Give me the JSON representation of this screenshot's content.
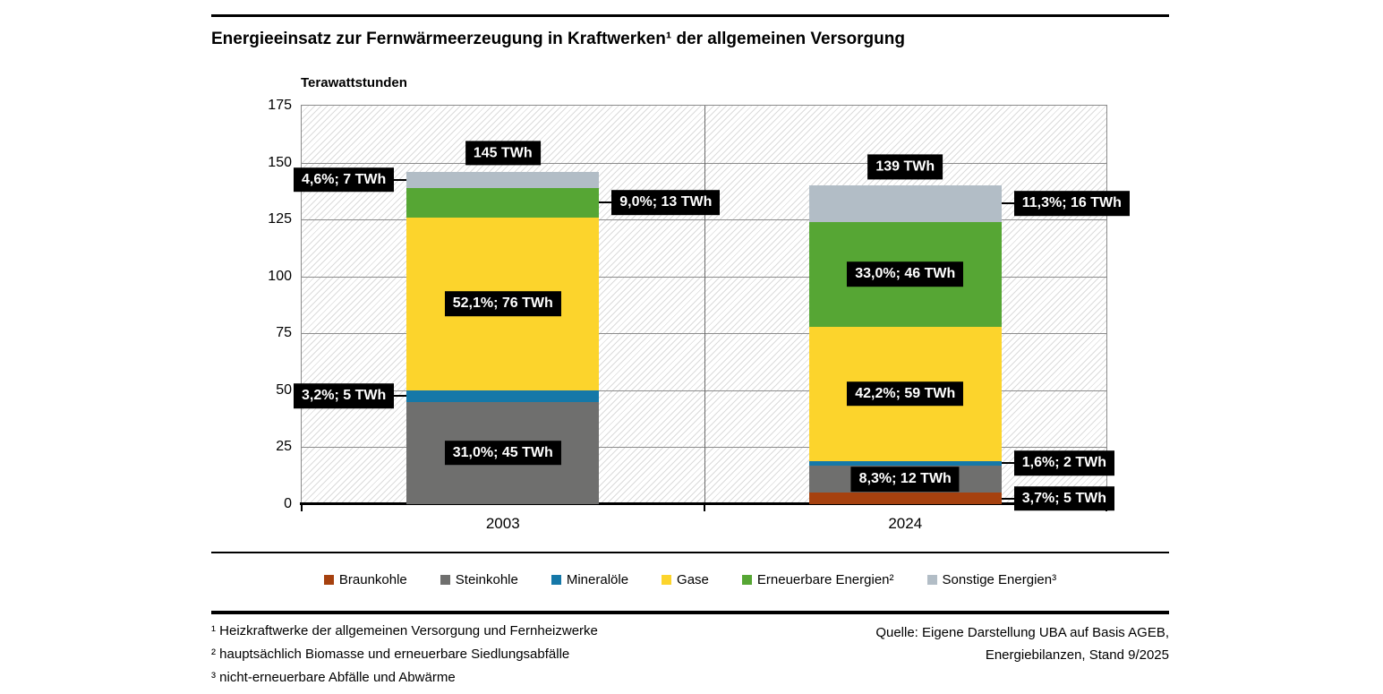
{
  "header": {
    "title": "Energieeinsatz zur Fernwärmeerzeugung in Kraftwerken¹ der allgemeinen Versorgung"
  },
  "chart_data": {
    "type": "bar",
    "subtype": "stacked",
    "unit": "TWh",
    "unit_axis_label": "Terawattstunden",
    "ylim": [
      0,
      175
    ],
    "y_step": 25,
    "y_ticks": [
      0,
      25,
      50,
      75,
      100,
      125,
      150,
      175
    ],
    "grid": true,
    "legend_position": "bottom",
    "categories": [
      "2003",
      "2024"
    ],
    "series": [
      {
        "name": "Braunkohle",
        "color": "#A6410F",
        "values": [
          0,
          5
        ]
      },
      {
        "name": "Steinkohle",
        "color": "#6F6F6E",
        "values": [
          45,
          12
        ]
      },
      {
        "name": "Mineralöle",
        "color": "#1578A8",
        "values": [
          5,
          2
        ]
      },
      {
        "name": "Gase",
        "color": "#FCD42C",
        "values": [
          76,
          59
        ]
      },
      {
        "name": "Erneuerbare Energien",
        "color": "#56A634",
        "values": [
          13,
          46
        ]
      },
      {
        "name": "Sonstige Energien",
        "color": "#B2BDC6",
        "values": [
          7,
          16
        ]
      }
    ],
    "bars": [
      {
        "category": "2003",
        "total": 145,
        "total_label": "145 TWh",
        "segments": [
          {
            "series": "Braunkohle",
            "value": 0,
            "label": "",
            "label_placement": "none"
          },
          {
            "series": "Steinkohle",
            "value": 45,
            "label": "31,0%; 45 TWh",
            "label_placement": "inside"
          },
          {
            "series": "Mineralöle",
            "value": 5,
            "label": "3,2%; 5 TWh",
            "label_placement": "left"
          },
          {
            "series": "Gase",
            "value": 76,
            "label": "52,1%; 76 TWh",
            "label_placement": "inside"
          },
          {
            "series": "Erneuerbare Energien",
            "value": 13,
            "label": "9,0%; 13 TWh",
            "label_placement": "right"
          },
          {
            "series": "Sonstige Energien",
            "value": 7,
            "label": "4,6%; 7 TWh",
            "label_placement": "left"
          }
        ]
      },
      {
        "category": "2024",
        "total": 139,
        "total_label": "139 TWh",
        "segments": [
          {
            "series": "Braunkohle",
            "value": 5,
            "label": "3,7%; 5 TWh",
            "label_placement": "right"
          },
          {
            "series": "Steinkohle",
            "value": 12,
            "label": "8,3%; 12 TWh",
            "label_placement": "inside"
          },
          {
            "series": "Mineralöle",
            "value": 2,
            "label": "1,6%; 2 TWh",
            "label_placement": "right"
          },
          {
            "series": "Gase",
            "value": 59,
            "label": "42,2%; 59 TWh",
            "label_placement": "inside"
          },
          {
            "series": "Erneuerbare Energien",
            "value": 46,
            "label": "33,0%; 46 TWh",
            "label_placement": "inside"
          },
          {
            "series": "Sonstige Energien",
            "value": 16,
            "label": "11,3%; 16 TWh",
            "label_placement": "right"
          }
        ]
      }
    ]
  },
  "legend": {
    "items": [
      {
        "label": "Braunkohle",
        "color": "#A6410F"
      },
      {
        "label": "Steinkohle",
        "color": "#6F6F6E"
      },
      {
        "label": "Mineralöle",
        "color": "#1578A8"
      },
      {
        "label": "Gase",
        "color": "#FCD42C"
      },
      {
        "label": "Erneuerbare Energien²",
        "color": "#56A634"
      },
      {
        "label": "Sonstige Energien³",
        "color": "#B2BDC6"
      }
    ]
  },
  "footnotes": [
    "¹ Heizkraftwerke der allgemeinen Versorgung und Fernheizwerke",
    "² hauptsächlich Biomasse und erneuerbare Siedlungsabfälle",
    "³ nicht-erneuerbare Abfälle und Abwärme"
  ],
  "source": {
    "line1": "Quelle: Eigene Darstellung UBA auf Basis AGEB,",
    "line2": "Energiebilanzen, Stand 9/2025"
  },
  "style": {
    "label_box_bg": "#000000",
    "label_box_text": "#FFFFFF",
    "gridline_color": "#8C8C8C"
  }
}
